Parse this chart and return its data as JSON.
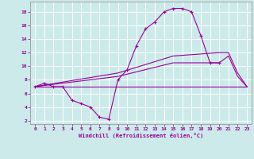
{
  "xlabel": "Windchill (Refroidissement éolien,°C)",
  "background_color": "#cceaea",
  "grid_color": "#aacccc",
  "line_color": "#990099",
  "xlim": [
    -0.5,
    23.5
  ],
  "ylim": [
    1.5,
    19.5
  ],
  "yticks": [
    2,
    4,
    6,
    8,
    10,
    12,
    14,
    16,
    18
  ],
  "xticks": [
    0,
    1,
    2,
    3,
    4,
    5,
    6,
    7,
    8,
    9,
    10,
    11,
    12,
    13,
    14,
    15,
    16,
    17,
    18,
    19,
    20,
    21,
    22,
    23
  ],
  "series1_x": [
    0,
    1,
    2,
    3,
    4,
    5,
    6,
    7,
    8,
    9,
    10,
    11,
    12,
    13,
    14,
    15,
    16,
    17,
    18,
    19,
    20
  ],
  "series1_y": [
    7.0,
    7.5,
    7.0,
    7.0,
    5.0,
    4.5,
    4.0,
    2.5,
    2.2,
    8.0,
    9.5,
    13.0,
    15.5,
    16.5,
    18.0,
    18.5,
    18.5,
    18.0,
    14.5,
    10.5,
    10.5
  ],
  "series2_x": [
    0,
    23
  ],
  "series2_y": [
    7.0,
    7.0
  ],
  "series3_x": [
    0,
    9,
    15,
    20,
    21,
    22,
    23
  ],
  "series3_y": [
    7.0,
    9.0,
    11.5,
    12.0,
    12.0,
    9.0,
    7.0
  ],
  "series4_x": [
    0,
    9,
    15,
    20,
    21,
    22,
    23
  ],
  "series4_y": [
    7.0,
    8.5,
    10.5,
    10.5,
    11.5,
    8.5,
    7.0
  ]
}
